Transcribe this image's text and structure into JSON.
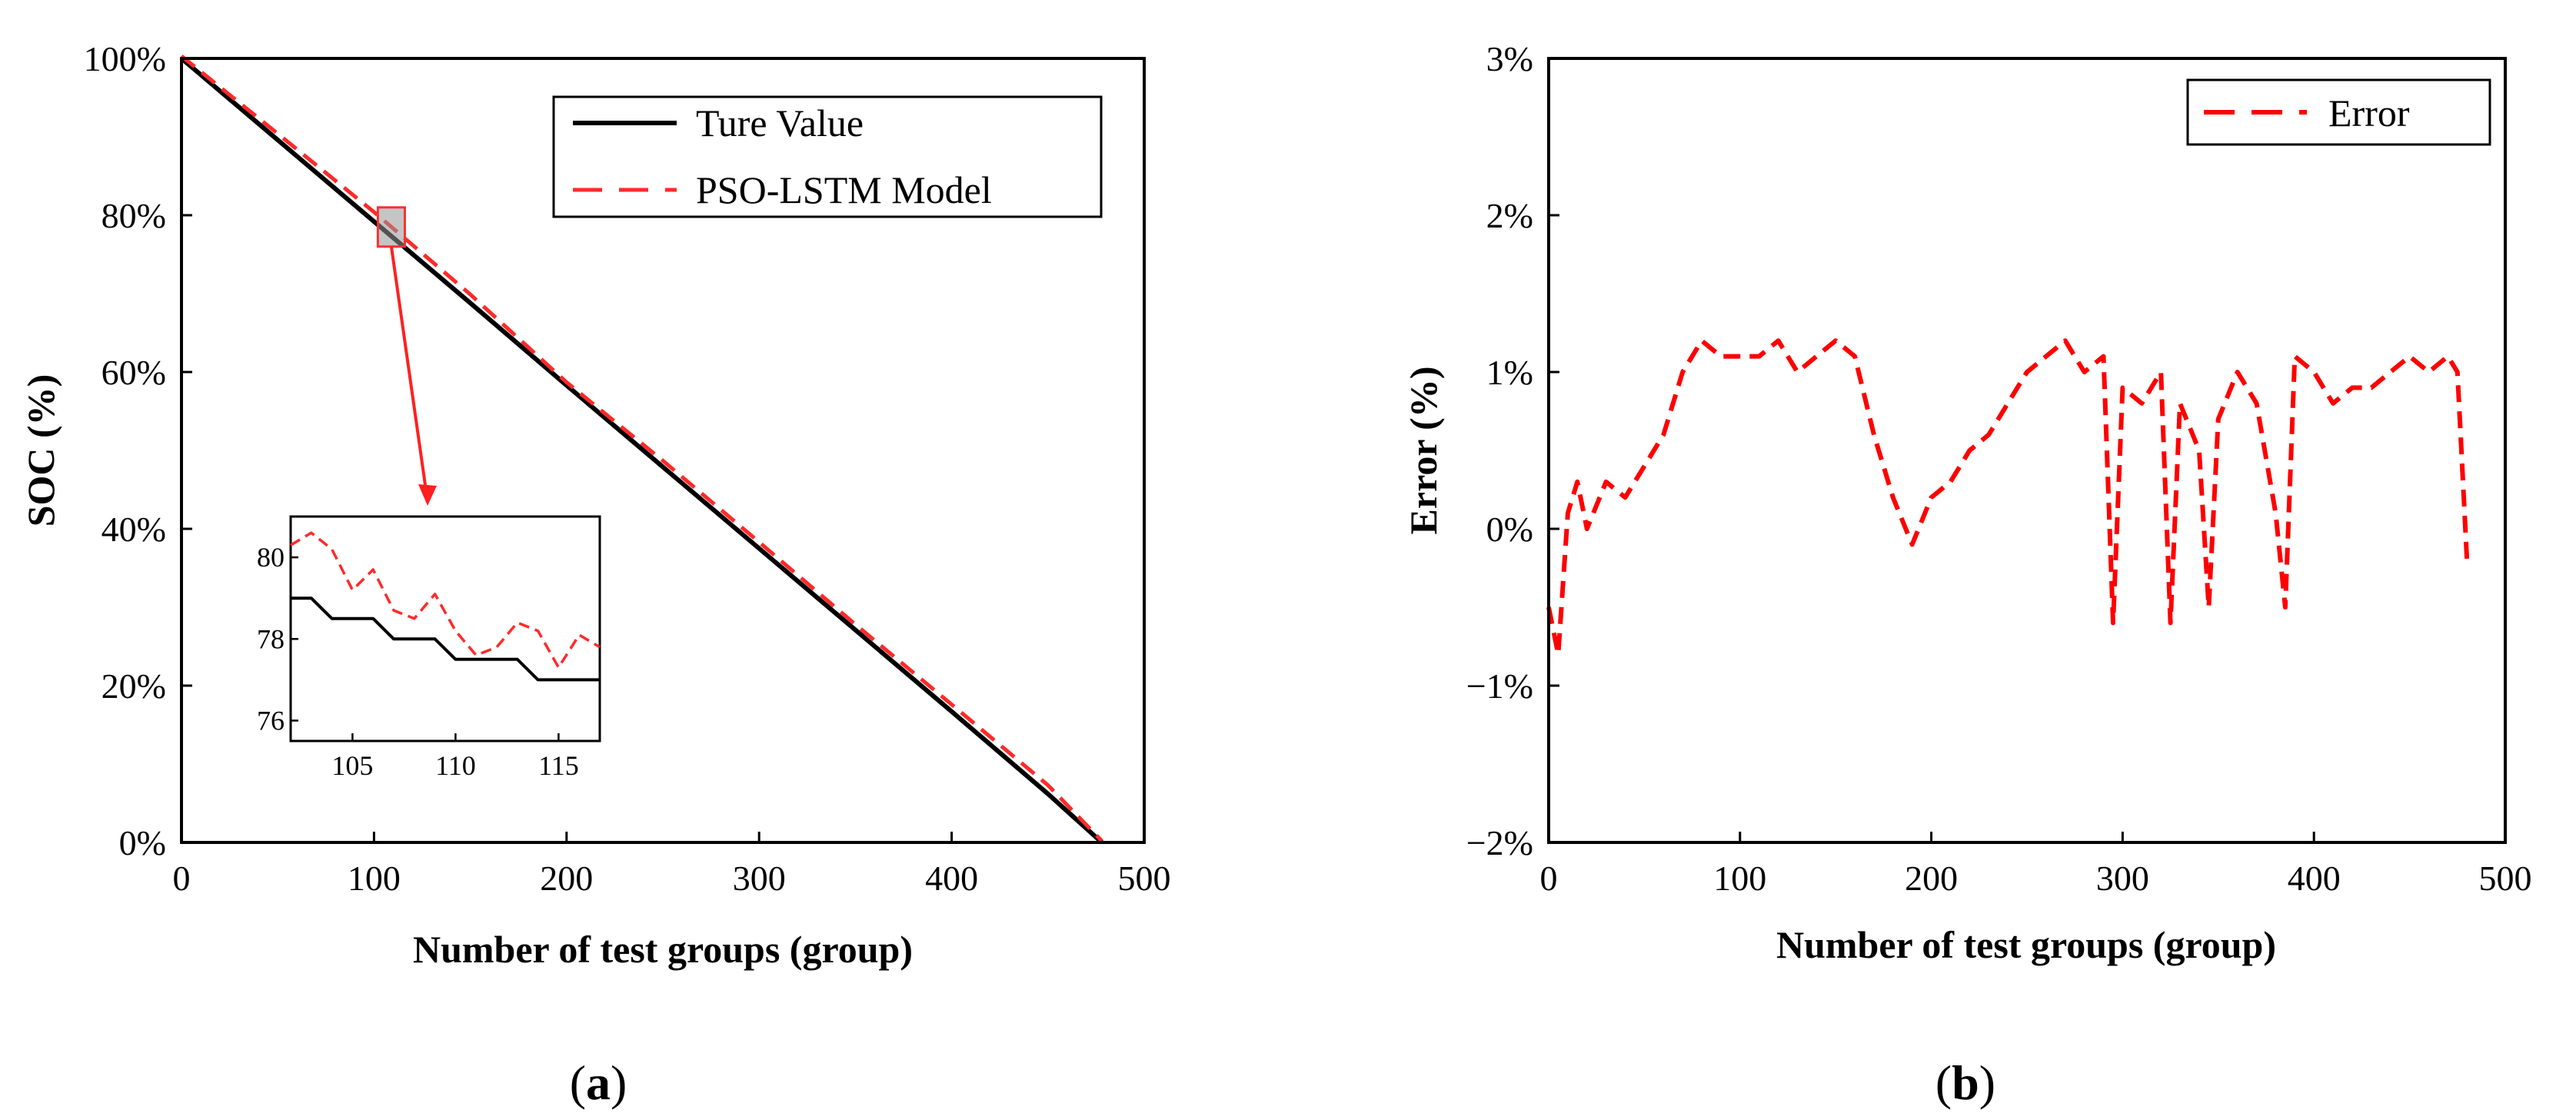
{
  "figure": {
    "panel_a_label": {
      "open": "(",
      "letter": "a",
      "close": ")"
    },
    "panel_b_label": {
      "open": "(",
      "letter": "b",
      "close": ")"
    }
  },
  "chart_data": [
    {
      "id": "a",
      "type": "line",
      "xlabel": "Number of test groups (group)",
      "ylabel": "SOC (%)",
      "xlim": [
        0,
        500
      ],
      "ylim": [
        0,
        100
      ],
      "xticks": [
        0,
        100,
        200,
        300,
        400,
        500
      ],
      "yticks": [
        0,
        20,
        40,
        60,
        80,
        100
      ],
      "ytick_labels": [
        "0%",
        "20%",
        "40%",
        "60%",
        "80%",
        "100%"
      ],
      "legend_position": "top-right",
      "series": [
        {
          "name": "Ture Value",
          "color": "#000000",
          "style": "solid",
          "x": [
            0,
            50,
            100,
            150,
            200,
            250,
            300,
            350,
            400,
            450,
            478
          ],
          "y": [
            100,
            89.6,
            79.2,
            68.8,
            58.3,
            47.9,
            37.5,
            27.1,
            16.7,
            6.2,
            0
          ]
        },
        {
          "name": "PSO-LSTM Model",
          "color": "#ff2a2a",
          "style": "dashed",
          "x": [
            0,
            50,
            100,
            150,
            200,
            250,
            300,
            350,
            400,
            450,
            478
          ],
          "y": [
            100.3,
            90.4,
            80.4,
            69.9,
            58.7,
            48.7,
            38.3,
            27.8,
            17.6,
            7.3,
            0.2
          ]
        }
      ],
      "highlight_box": {
        "x_range": [
          102,
          116
        ],
        "y_range": [
          76,
          81
        ]
      },
      "inset": {
        "xlim": [
          102,
          117
        ],
        "ylim": [
          75.5,
          81
        ],
        "xticks": [
          105,
          110,
          115
        ],
        "yticks": [
          76,
          78,
          80
        ],
        "series": [
          {
            "name": "Ture Value",
            "color": "#000000",
            "style": "solid",
            "x": [
              102,
              103,
              104,
              105,
              106,
              107,
              108,
              109,
              110,
              111,
              112,
              113,
              114,
              115,
              116,
              117
            ],
            "y": [
              79,
              79,
              78.5,
              78.5,
              78.5,
              78,
              78,
              78,
              77.5,
              77.5,
              77.5,
              77.5,
              77,
              77,
              77,
              77
            ]
          },
          {
            "name": "PSO-LSTM Model",
            "color": "#ff2a2a",
            "style": "dashed",
            "x": [
              102,
              103,
              104,
              105,
              106,
              107,
              108,
              109,
              110,
              111,
              112,
              113,
              114,
              115,
              116,
              117
            ],
            "y": [
              80.3,
              80.6,
              80.2,
              79.2,
              79.7,
              78.7,
              78.5,
              79.1,
              78.2,
              77.6,
              77.8,
              78.4,
              78.2,
              77.3,
              78.1,
              77.8
            ]
          }
        ]
      }
    },
    {
      "id": "b",
      "type": "line",
      "xlabel": "Number of test groups (group)",
      "ylabel": "Error (%)",
      "xlim": [
        0,
        500
      ],
      "ylim": [
        -2,
        3
      ],
      "xticks": [
        0,
        100,
        200,
        300,
        400,
        500
      ],
      "yticks": [
        -2,
        -1,
        0,
        1,
        2,
        3
      ],
      "ytick_labels": [
        "−2%",
        "−1%",
        "0%",
        "1%",
        "2%",
        "3%"
      ],
      "legend_position": "top-right",
      "series": [
        {
          "name": "Error",
          "color": "#ff0000",
          "style": "dashed",
          "x": [
            0,
            5,
            10,
            15,
            20,
            30,
            40,
            50,
            60,
            70,
            80,
            90,
            100,
            110,
            120,
            130,
            140,
            150,
            160,
            170,
            180,
            190,
            200,
            210,
            220,
            230,
            240,
            250,
            260,
            270,
            280,
            290,
            295,
            300,
            310,
            320,
            325,
            330,
            340,
            345,
            350,
            360,
            370,
            380,
            385,
            390,
            400,
            410,
            420,
            430,
            440,
            450,
            460,
            470,
            475,
            480
          ],
          "y": [
            -0.5,
            -0.8,
            0.1,
            0.3,
            0.0,
            0.3,
            0.2,
            0.4,
            0.6,
            1.0,
            1.2,
            1.1,
            1.1,
            1.1,
            1.2,
            1.0,
            1.1,
            1.2,
            1.1,
            0.6,
            0.2,
            -0.1,
            0.2,
            0.3,
            0.5,
            0.6,
            0.8,
            1.0,
            1.1,
            1.2,
            1.0,
            1.1,
            -0.6,
            0.9,
            0.8,
            1.0,
            -0.6,
            0.8,
            0.5,
            -0.5,
            0.7,
            1.0,
            0.8,
            0.1,
            -0.5,
            1.1,
            1.0,
            0.8,
            0.9,
            0.9,
            1.0,
            1.1,
            1.0,
            1.1,
            1.0,
            -0.2
          ]
        }
      ]
    }
  ]
}
